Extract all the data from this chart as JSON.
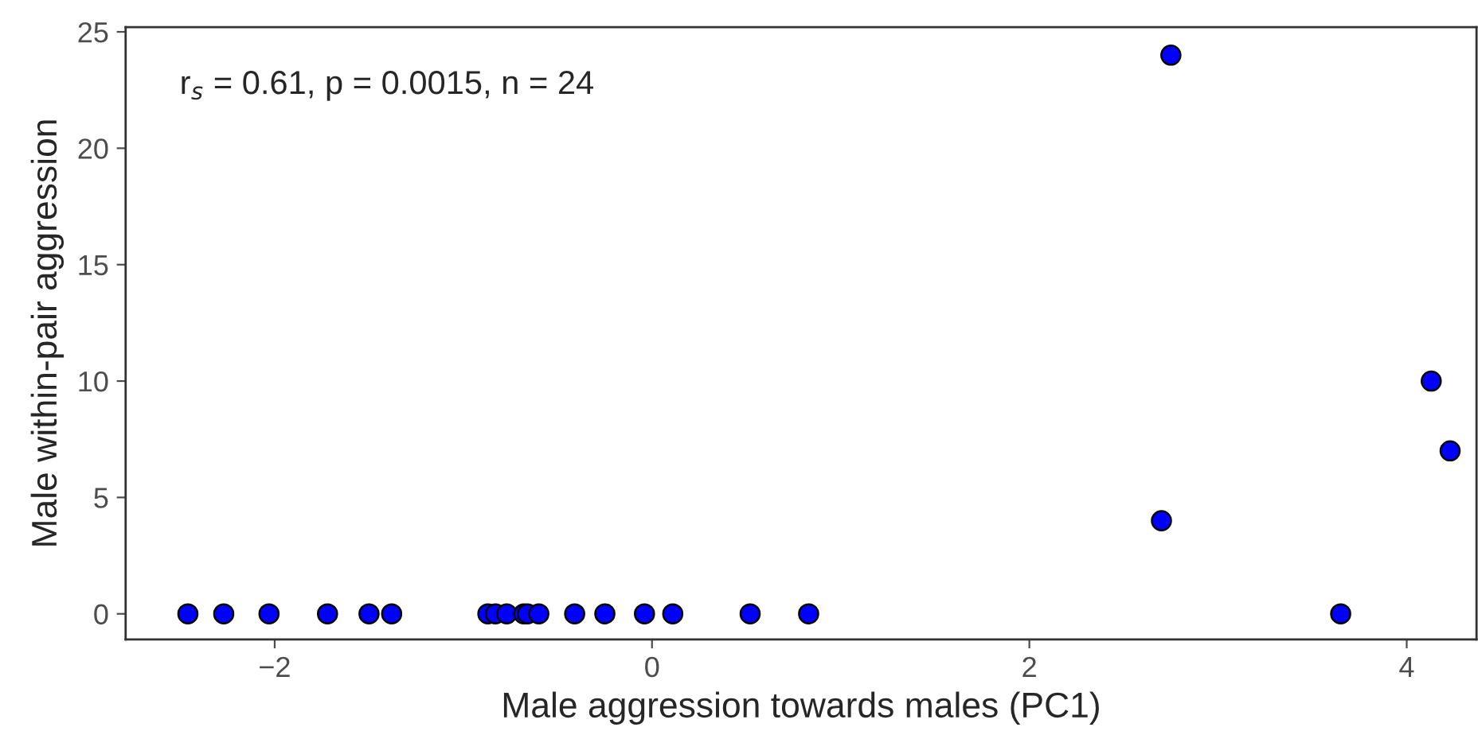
{
  "chart_data": {
    "type": "scatter",
    "xlabel": "Male aggression towards males (PC1)",
    "ylabel": "Male within-pair aggression",
    "x": [
      -2.46,
      -2.27,
      -2.03,
      -1.72,
      -1.5,
      -1.38,
      -0.87,
      -0.83,
      -0.77,
      -0.68,
      -0.66,
      -0.6,
      -0.41,
      -0.25,
      -0.04,
      0.11,
      0.52,
      0.83,
      2.75,
      4.13,
      4.23,
      2.7,
      3.65
    ],
    "series": [
      {
        "color": "#0000ff",
        "values": [
          0,
          0,
          0,
          0,
          0,
          0,
          0,
          0,
          0,
          0,
          0,
          0,
          0,
          0,
          0,
          0,
          0,
          0,
          24,
          10,
          7,
          4,
          0
        ]
      }
    ],
    "xlim": [
      -2.79,
      4.37
    ],
    "ylim": [
      -1.1,
      25.2
    ],
    "xticks": [
      {
        "value": -2,
        "label": "−2"
      },
      0,
      2,
      4
    ],
    "yticks": [
      0,
      5,
      10,
      15,
      20,
      25
    ],
    "annotations": [
      "r$_{s}$ = 0.61, p = 0.0015, n = 24"
    ],
    "grid": false,
    "legend": false,
    "marker": "circle"
  }
}
